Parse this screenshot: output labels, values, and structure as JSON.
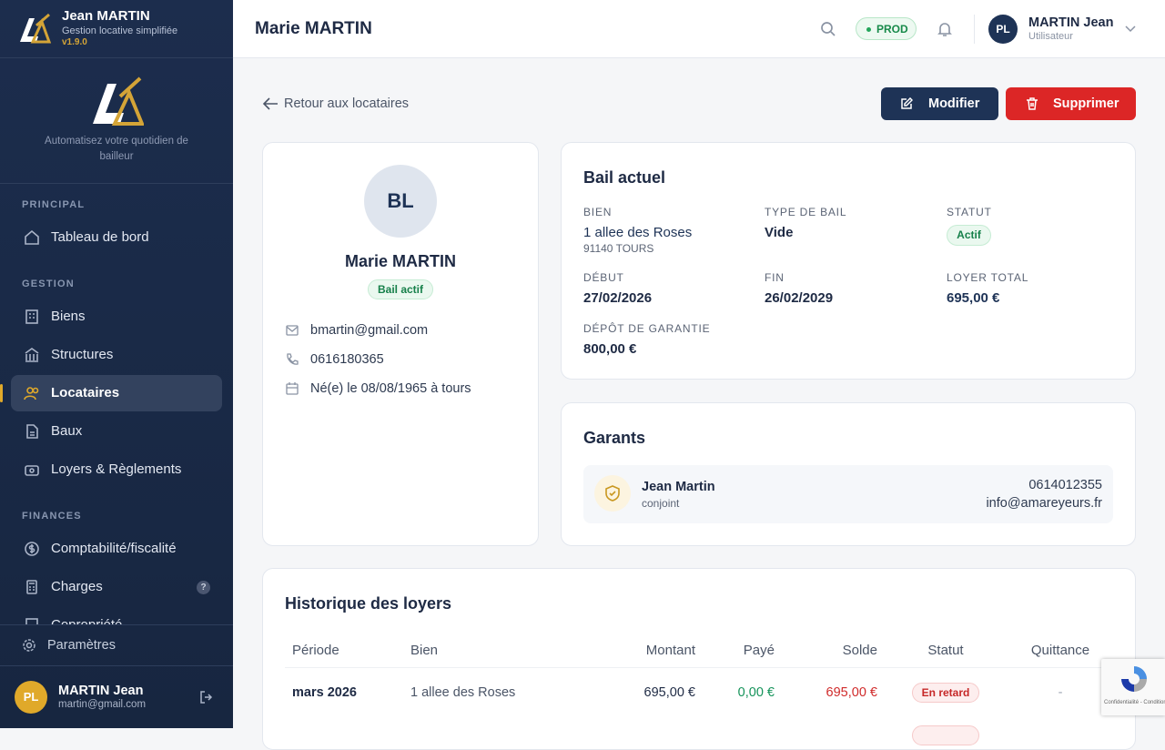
{
  "sidebar": {
    "brand": {
      "name": "Jean MARTIN",
      "tagline": "Gestion locative simplifiée",
      "version": "v1.9.0"
    },
    "logo_tagline": "Automatisez votre quotidien de bailleur",
    "sections": [
      {
        "title": "PRINCIPAL",
        "items": [
          "Tableau de bord"
        ]
      },
      {
        "title": "GESTION",
        "items": [
          "Biens",
          "Structures",
          "Locataires",
          "Baux",
          "Loyers & Règlements"
        ]
      },
      {
        "title": "FINANCES",
        "items": [
          "Comptabilité/fiscalité",
          "Charges",
          "Copropriété"
        ]
      }
    ],
    "help_badge": "?",
    "settings": "Paramètres",
    "user": {
      "initials": "PL",
      "name": "MARTIN Jean",
      "email": "martin@gmail.com"
    }
  },
  "topbar": {
    "title": "Marie MARTIN",
    "env": "PROD",
    "user": {
      "initials": "PL",
      "name": "MARTIN Jean",
      "role": "Utilisateur"
    }
  },
  "actions": {
    "back": "Retour aux locataires",
    "edit": "Modifier",
    "delete": "Supprimer"
  },
  "profile": {
    "initials": "BL",
    "name": "Marie MARTIN",
    "badge": "Bail actif",
    "email": "bmartin@gmail.com",
    "phone": "0616180365",
    "birth": "Né(e) le 08/08/1965 à tours"
  },
  "lease": {
    "title": "Bail actuel",
    "fields": [
      {
        "label": "BIEN",
        "value": "1 allee des Roses",
        "sub": "91140 TOURS"
      },
      {
        "label": "TYPE DE BAIL",
        "value": "Vide"
      },
      {
        "label": "STATUT",
        "value": "Actif"
      },
      {
        "label": "DÉBUT",
        "value": "27/02/2026"
      },
      {
        "label": "FIN",
        "value": "26/02/2029"
      },
      {
        "label": "LOYER TOTAL",
        "value": "695,00 €"
      },
      {
        "label": "DÉPÔT DE GARANTIE",
        "value": "800,00 €"
      }
    ]
  },
  "guarantors": {
    "title": "Garants",
    "items": [
      {
        "name": "Jean Martin",
        "relation": "conjoint",
        "phone": "0614012355",
        "email": "info@amareyeurs.fr"
      }
    ]
  },
  "history": {
    "title": "Historique des loyers",
    "columns": [
      "Période",
      "Bien",
      "Montant",
      "Payé",
      "Solde",
      "Statut",
      "Quittance"
    ],
    "rows": [
      [
        "mars 2026",
        "1 allee des Roses",
        "695,00 €",
        "0,00 €",
        "695,00 €",
        "En retard",
        "-"
      ]
    ]
  },
  "recaptcha": "Confidentialité - Conditions"
}
